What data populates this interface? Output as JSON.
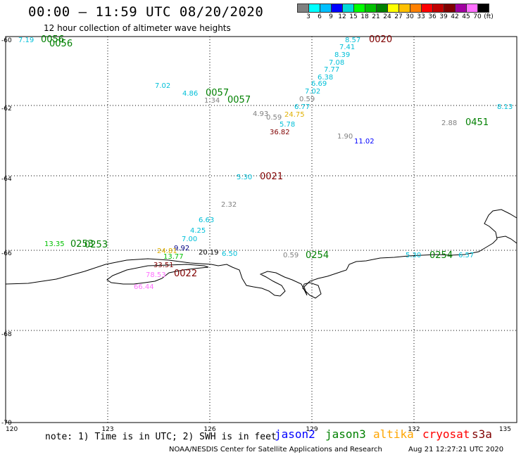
{
  "header": {
    "title": "00:00 – 11:59 UTC 08/20/2020",
    "subtitle": "12 hour collection of altimeter wave heights"
  },
  "colorbar": {
    "colors": [
      "#808080",
      "#00ffff",
      "#00bfff",
      "#0000ff",
      "#00d8d8",
      "#00ff00",
      "#00c000",
      "#008000",
      "#ffff00",
      "#ffc000",
      "#ff8000",
      "#ff0000",
      "#c00000",
      "#800000",
      "#a000a0",
      "#ff70ff",
      "#000000"
    ],
    "labels": [
      "3",
      "6",
      "9",
      "12",
      "15",
      "18",
      "21",
      "24",
      "27",
      "30",
      "33",
      "36",
      "39",
      "42",
      "45",
      "70",
      "(ft)"
    ]
  },
  "axes": {
    "lat_labels": [
      "-60",
      "-62",
      "-64",
      "-66",
      "-68",
      "-70"
    ],
    "lon_labels": [
      "120",
      "123",
      "126",
      "129",
      "132",
      "135"
    ]
  },
  "labels": [
    {
      "text": "0056",
      "color": "#008000"
    },
    {
      "text": "0056",
      "color": "#008000"
    },
    {
      "text": "7.19",
      "color": "#00bfd8"
    },
    {
      "text": "4.86",
      "color": "#00bfd8"
    },
    {
      "text": "7.02",
      "color": "#00bfd8"
    },
    {
      "text": "0057",
      "color": "#008000"
    },
    {
      "text": "0057",
      "color": "#008000"
    },
    {
      "text": "1.34",
      "color": "#808080"
    },
    {
      "text": "4.93",
      "color": "#808080"
    },
    {
      "text": "0.59",
      "color": "#808080"
    },
    {
      "text": "24.75",
      "color": "#e0b000"
    },
    {
      "text": "5.78",
      "color": "#00bfd8"
    },
    {
      "text": "36.82",
      "color": "#800000"
    },
    {
      "text": "6.77",
      "color": "#00bfd8"
    },
    {
      "text": "0.59",
      "color": "#808080"
    },
    {
      "text": "7.02",
      "color": "#00bfd8"
    },
    {
      "text": "6.69",
      "color": "#00bfd8"
    },
    {
      "text": "6.38",
      "color": "#00bfd8"
    },
    {
      "text": "7.77",
      "color": "#00bfd8"
    },
    {
      "text": "7.08",
      "color": "#00bfd8"
    },
    {
      "text": "8.39",
      "color": "#00bfd8"
    },
    {
      "text": "7.41",
      "color": "#00bfd8"
    },
    {
      "text": "8.57",
      "color": "#00bfd8"
    },
    {
      "text": "0020",
      "color": "#800000"
    },
    {
      "text": "1.90",
      "color": "#808080"
    },
    {
      "text": "11.02",
      "color": "#0000ff"
    },
    {
      "text": "2.88",
      "color": "#808080"
    },
    {
      "text": "0451",
      "color": "#008000"
    },
    {
      "text": "8.13",
      "color": "#00bfd8"
    },
    {
      "text": "5.30",
      "color": "#00bfd8"
    },
    {
      "text": "0021",
      "color": "#800000"
    },
    {
      "text": "2.32",
      "color": "#808080"
    },
    {
      "text": "6.63",
      "color": "#00bfd8"
    },
    {
      "text": "4.25",
      "color": "#00bfd8"
    },
    {
      "text": "7.00",
      "color": "#00bfd8"
    },
    {
      "text": "9.92",
      "color": "#000080"
    },
    {
      "text": "24.81",
      "color": "#e0b000"
    },
    {
      "text": "13.77",
      "color": "#00c000"
    },
    {
      "text": "20.19",
      "color": "#000000"
    },
    {
      "text": "6.50",
      "color": "#00bfd8"
    },
    {
      "text": "33.51",
      "color": "#800000"
    },
    {
      "text": "0022",
      "color": "#800000"
    },
    {
      "text": "78.53",
      "color": "#ff70ff"
    },
    {
      "text": "66.44",
      "color": "#ff70ff"
    },
    {
      "text": "13.35",
      "color": "#00c000"
    },
    {
      "text": "0253",
      "color": "#008000"
    },
    {
      "text": "0253",
      "color": "#008000"
    },
    {
      "text": "0.59",
      "color": "#808080"
    },
    {
      "text": "0254",
      "color": "#008000"
    },
    {
      "text": "5.30",
      "color": "#00bfd8"
    },
    {
      "text": "0254",
      "color": "#008000"
    },
    {
      "text": "6.57",
      "color": "#00bfd8"
    }
  ],
  "footer": {
    "note": "note: 1) Time is in UTC; 2) SWH is in feet",
    "missions": [
      {
        "name": "jason2",
        "color": "#0000ff"
      },
      {
        "name": "jason3",
        "color": "#008000"
      },
      {
        "name": "altika",
        "color": "#ffa500"
      },
      {
        "name": "cryosat",
        "color": "#ff0000"
      },
      {
        "name": "s3a",
        "color": "#800000"
      }
    ],
    "credit": "NOAA/NESDIS Center for Satellite Applications and Research",
    "stamp": "Aug 21 12:27:21 UTC 2020"
  }
}
